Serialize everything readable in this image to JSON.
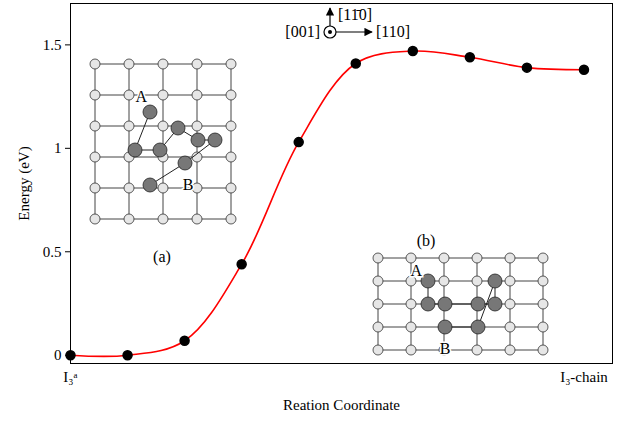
{
  "chart_data": {
    "type": "line",
    "x_label": "Reation Coordinate",
    "y_label": "Energy (eV)",
    "x": [
      0,
      1,
      2,
      3,
      4,
      5,
      6,
      7,
      8,
      9
    ],
    "values": [
      0,
      0,
      0.07,
      0.44,
      1.03,
      1.41,
      1.47,
      1.44,
      1.39,
      1.38
    ],
    "color": "#ff0000",
    "marker": "circle",
    "xlim": [
      0,
      9.5
    ],
    "xticks": [
      {
        "value": 0,
        "label": "I₃ᵃ"
      },
      {
        "value": 9,
        "label": "I₃-chain"
      }
    ],
    "ylim": [
      -0.04,
      1.7
    ],
    "yticks": [
      0,
      0.5,
      1,
      1.5
    ],
    "annotations": {
      "insets": [
        {
          "label": "(a)",
          "atoms": [
            "A",
            "B"
          ]
        },
        {
          "label": "(b)",
          "atoms": [
            "A",
            "B"
          ]
        }
      ],
      "directions": [
        "[11̄0]",
        "[110]",
        "[001]"
      ]
    }
  }
}
